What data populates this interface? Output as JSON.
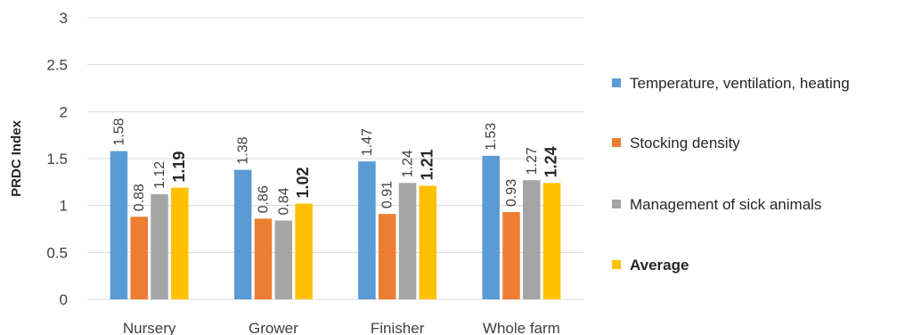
{
  "chart_data": {
    "type": "bar",
    "title": "",
    "xlabel": "",
    "ylabel": "PRDC Index",
    "ylim": [
      0,
      3
    ],
    "yticks": [
      "0",
      "0.5",
      "1",
      "1.5",
      "2",
      "2.5",
      "3"
    ],
    "ytick_values": [
      0,
      0.5,
      1,
      1.5,
      2,
      2.5,
      3
    ],
    "grid": true,
    "legend_position": "right",
    "categories": [
      "Nursery",
      "Grower",
      "Finisher",
      "Whole farm"
    ],
    "series": [
      {
        "name": "Temperature, ventilation, heating",
        "color": "#5b9bd5",
        "bold": false,
        "values": [
          1.58,
          1.38,
          1.47,
          1.53
        ],
        "labels": [
          "1.58",
          "1.38",
          "1.47",
          "1.53"
        ]
      },
      {
        "name": "Stocking density",
        "color": "#ed7d31",
        "bold": false,
        "values": [
          0.88,
          0.86,
          0.91,
          0.93
        ],
        "labels": [
          "0.88",
          "0.86",
          "0.91",
          "0.93"
        ]
      },
      {
        "name": "Management of sick animals",
        "color": "#a5a5a5",
        "bold": false,
        "values": [
          1.12,
          0.84,
          1.24,
          1.27
        ],
        "labels": [
          "1.12",
          "0.84",
          "1.24",
          "1.27"
        ]
      },
      {
        "name": "Average",
        "color": "#ffc000",
        "bold": true,
        "values": [
          1.19,
          1.02,
          1.21,
          1.24
        ],
        "labels": [
          "1.19",
          "1.02",
          "1.21",
          "1.24"
        ]
      }
    ]
  }
}
